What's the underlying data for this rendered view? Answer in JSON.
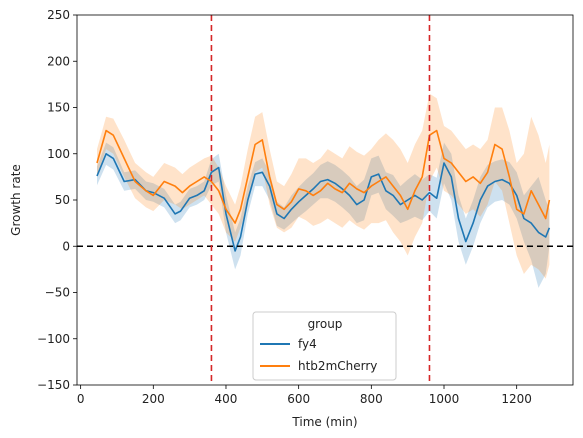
{
  "chart_data": {
    "type": "line",
    "title": "",
    "xlabel": "Time (min)",
    "ylabel": "Growth rate",
    "xlim": [
      -10,
      1355
    ],
    "ylim": [
      -150,
      250
    ],
    "xticks": [
      0,
      200,
      400,
      600,
      800,
      1000,
      1200
    ],
    "yticks": [
      -150,
      -100,
      -50,
      0,
      50,
      100,
      150,
      200,
      250
    ],
    "grid": false,
    "legend": {
      "title": "group",
      "placement": "lower-center"
    },
    "reference_lines": [
      {
        "orientation": "horizontal",
        "value": 0,
        "color": "#000000",
        "style": "dashed"
      },
      {
        "orientation": "vertical",
        "value": 360,
        "color": "#d62728",
        "style": "dashed"
      },
      {
        "orientation": "vertical",
        "value": 960,
        "color": "#d62728",
        "style": "dashed"
      }
    ],
    "series": [
      {
        "name": "fy4",
        "color": "#1f77b4",
        "x": [
          45,
          70,
          90,
          120,
          150,
          180,
          200,
          230,
          260,
          275,
          300,
          320,
          340,
          360,
          380,
          400,
          425,
          440,
          460,
          480,
          500,
          520,
          540,
          560,
          580,
          600,
          620,
          640,
          660,
          680,
          700,
          720,
          740,
          760,
          780,
          800,
          820,
          840,
          860,
          880,
          900,
          920,
          940,
          960,
          980,
          1000,
          1020,
          1040,
          1060,
          1080,
          1100,
          1120,
          1140,
          1160,
          1180,
          1200,
          1220,
          1240,
          1260,
          1280,
          1290
        ],
        "y": [
          76,
          100,
          95,
          70,
          72,
          60,
          58,
          52,
          35,
          38,
          52,
          55,
          60,
          80,
          85,
          35,
          -5,
          10,
          50,
          78,
          80,
          65,
          35,
          30,
          40,
          48,
          55,
          62,
          70,
          72,
          68,
          62,
          55,
          45,
          50,
          75,
          78,
          60,
          55,
          45,
          50,
          55,
          50,
          58,
          52,
          90,
          75,
          30,
          5,
          25,
          50,
          65,
          70,
          72,
          68,
          55,
          30,
          25,
          15,
          10,
          20
        ],
        "lower": [
          66,
          88,
          83,
          60,
          62,
          50,
          48,
          42,
          25,
          28,
          42,
          45,
          50,
          66,
          70,
          15,
          -25,
          -10,
          35,
          65,
          65,
          50,
          22,
          18,
          25,
          32,
          38,
          45,
          52,
          52,
          48,
          42,
          35,
          25,
          28,
          55,
          58,
          40,
          33,
          25,
          28,
          32,
          28,
          38,
          30,
          68,
          50,
          5,
          -20,
          0,
          25,
          42,
          48,
          50,
          45,
          30,
          5,
          -15,
          -45,
          -30,
          0
        ],
        "upper": [
          86,
          112,
          107,
          80,
          82,
          70,
          68,
          62,
          45,
          48,
          62,
          65,
          70,
          94,
          100,
          55,
          15,
          30,
          65,
          91,
          95,
          80,
          48,
          42,
          55,
          64,
          72,
          79,
          88,
          92,
          88,
          82,
          75,
          65,
          72,
          95,
          98,
          80,
          77,
          65,
          72,
          78,
          72,
          78,
          74,
          112,
          100,
          55,
          30,
          50,
          75,
          88,
          92,
          94,
          91,
          80,
          55,
          65,
          75,
          50,
          40
        ]
      },
      {
        "name": "htb2mCherry",
        "color": "#ff7f0e",
        "x": [
          45,
          70,
          90,
          120,
          150,
          180,
          200,
          230,
          260,
          280,
          300,
          320,
          340,
          360,
          380,
          400,
          425,
          440,
          460,
          480,
          500,
          520,
          540,
          560,
          580,
          600,
          620,
          640,
          660,
          680,
          700,
          720,
          740,
          760,
          780,
          800,
          820,
          840,
          860,
          880,
          900,
          920,
          940,
          960,
          980,
          1000,
          1020,
          1040,
          1060,
          1080,
          1100,
          1120,
          1140,
          1160,
          1180,
          1200,
          1220,
          1240,
          1260,
          1280,
          1290
        ],
        "y": [
          90,
          125,
          120,
          95,
          70,
          60,
          55,
          70,
          65,
          58,
          65,
          70,
          75,
          70,
          60,
          40,
          25,
          40,
          75,
          110,
          115,
          75,
          45,
          40,
          48,
          62,
          60,
          55,
          60,
          68,
          62,
          58,
          68,
          62,
          58,
          65,
          70,
          75,
          65,
          55,
          40,
          60,
          75,
          120,
          125,
          95,
          90,
          80,
          70,
          75,
          68,
          80,
          110,
          105,
          75,
          40,
          35,
          60,
          45,
          30,
          50
        ],
        "lower": [
          75,
          105,
          100,
          75,
          52,
          42,
          38,
          50,
          45,
          40,
          45,
          50,
          55,
          45,
          35,
          15,
          5,
          20,
          45,
          80,
          85,
          45,
          20,
          15,
          20,
          32,
          28,
          22,
          25,
          30,
          25,
          20,
          28,
          22,
          18,
          25,
          25,
          28,
          15,
          5,
          -10,
          10,
          25,
          70,
          85,
          60,
          55,
          45,
          35,
          40,
          32,
          45,
          70,
          60,
          25,
          -10,
          -30,
          -20,
          -25,
          -35,
          -20
        ],
        "upper": [
          105,
          140,
          138,
          115,
          90,
          80,
          75,
          90,
          85,
          78,
          85,
          90,
          95,
          98,
          85,
          65,
          45,
          65,
          105,
          140,
          145,
          105,
          70,
          65,
          78,
          95,
          95,
          90,
          95,
          105,
          100,
          95,
          108,
          102,
          98,
          105,
          115,
          122,
          115,
          105,
          90,
          110,
          125,
          165,
          160,
          130,
          125,
          115,
          105,
          110,
          105,
          115,
          150,
          150,
          125,
          90,
          100,
          140,
          120,
          90,
          110
        ]
      }
    ]
  }
}
